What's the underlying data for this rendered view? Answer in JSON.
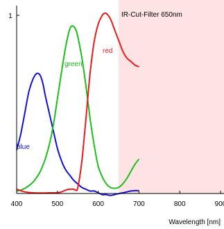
{
  "chart_data": {
    "type": "line",
    "title": "",
    "xlabel": "Wavelength [nm]",
    "ylabel": "",
    "xlim": [
      400,
      900
    ],
    "ylim": [
      0,
      1.03
    ],
    "x_ticks": [
      400,
      500,
      600,
      700,
      800,
      900
    ],
    "x_tick_labels": [
      "400",
      "500",
      "600",
      "700",
      "800",
      "900"
    ],
    "y_ticks": [
      1
    ],
    "y_tick_labels": [
      "1"
    ],
    "grid": false,
    "legend": "none",
    "series": [
      {
        "name": "blue",
        "color": "#1010d8",
        "x": [
          400,
          410,
          420,
          430,
          440,
          448,
          455,
          460,
          465,
          470,
          480,
          490,
          500,
          510,
          520,
          530,
          540,
          550,
          560,
          570,
          580,
          590,
          600,
          610,
          620,
          630,
          640,
          650,
          660,
          670,
          680,
          690,
          700
        ],
        "y": [
          0.24,
          0.33,
          0.45,
          0.57,
          0.64,
          0.67,
          0.67,
          0.65,
          0.61,
          0.55,
          0.45,
          0.35,
          0.25,
          0.18,
          0.13,
          0.1,
          0.07,
          0.05,
          0.03,
          0.02,
          0.01,
          0.01,
          0.0,
          -0.01,
          -0.01,
          -0.015,
          -0.01,
          -0.005,
          0.0,
          0.005,
          0.01,
          0.012,
          0.012
        ]
      },
      {
        "name": "green",
        "color": "#18c018",
        "x": [
          400,
          410,
          420,
          430,
          440,
          450,
          460,
          470,
          480,
          490,
          500,
          510,
          520,
          530,
          537,
          545,
          550,
          560,
          570,
          580,
          590,
          600,
          610,
          620,
          630,
          640,
          650,
          660,
          670,
          680,
          690,
          700
        ],
        "y": [
          0.01,
          0.015,
          0.025,
          0.04,
          0.06,
          0.09,
          0.13,
          0.19,
          0.27,
          0.38,
          0.53,
          0.68,
          0.82,
          0.92,
          0.94,
          0.92,
          0.88,
          0.76,
          0.6,
          0.42,
          0.27,
          0.15,
          0.09,
          0.05,
          0.03,
          0.025,
          0.03,
          0.05,
          0.08,
          0.12,
          0.16,
          0.19
        ]
      },
      {
        "name": "red",
        "color": "#ee1818",
        "x": [
          400,
          410,
          420,
          430,
          440,
          450,
          460,
          470,
          480,
          490,
          500,
          510,
          520,
          530,
          540,
          545,
          550,
          560,
          570,
          580,
          590,
          600,
          610,
          615,
          620,
          630,
          640,
          650,
          660,
          670,
          680,
          690,
          700
        ],
        "y": [
          0.02,
          0.012,
          0.005,
          0.002,
          0.0,
          -0.001,
          -0.001,
          -0.001,
          0.0,
          0.0,
          0.0,
          0.005,
          0.015,
          0.02,
          0.02,
          0.015,
          0.03,
          0.18,
          0.42,
          0.67,
          0.85,
          0.95,
          1.0,
          1.01,
          1.01,
          0.98,
          0.92,
          0.86,
          0.8,
          0.76,
          0.74,
          0.72,
          0.71
        ]
      }
    ],
    "annotations": [
      {
        "text": "blue",
        "color": "#1010d8"
      },
      {
        "text": "green",
        "color": "#18c018"
      },
      {
        "text": "red",
        "color": "#ee1818"
      },
      {
        "text": "IR-Cut-Filter 650nm",
        "color": "#000000"
      }
    ],
    "shaded_region": {
      "x_from": 650,
      "x_to": 900,
      "color": "#fde3e3"
    }
  }
}
